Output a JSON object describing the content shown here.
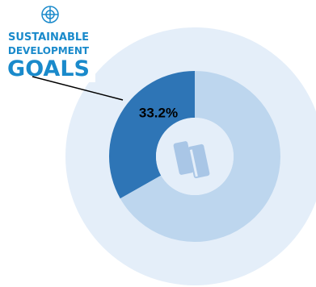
{
  "logo": {
    "lines": [
      "SUSTAINABLE",
      "DEVELOPMENT",
      "GOALS"
    ]
  },
  "chart_data": {
    "type": "donut",
    "values": [
      33.2,
      66.8
    ],
    "value_labels": [
      "33.2%",
      null
    ],
    "colors": [
      "#2e75b6",
      "#bdd6ee"
    ]
  }
}
